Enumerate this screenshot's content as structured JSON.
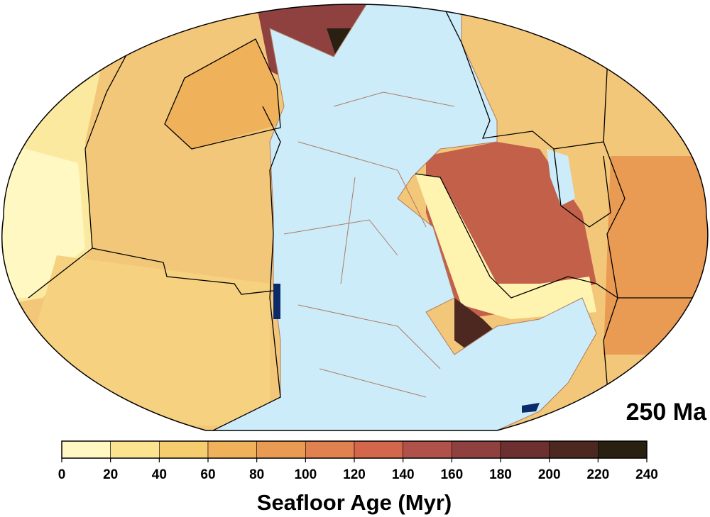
{
  "age_label": "250 Ma",
  "colorbar": {
    "label": "Seafloor Age (Myr)",
    "range": [
      0,
      240
    ],
    "ticks": [
      0,
      20,
      40,
      60,
      80,
      100,
      120,
      140,
      160,
      180,
      200,
      220,
      240
    ],
    "colors": [
      "#fff8c2",
      "#fbe390",
      "#f5cd6f",
      "#efb25b",
      "#e99a53",
      "#e28150",
      "#d4664c",
      "#b0524a",
      "#8f4140",
      "#6d3030",
      "#4d2820",
      "#2a2012"
    ]
  }
}
